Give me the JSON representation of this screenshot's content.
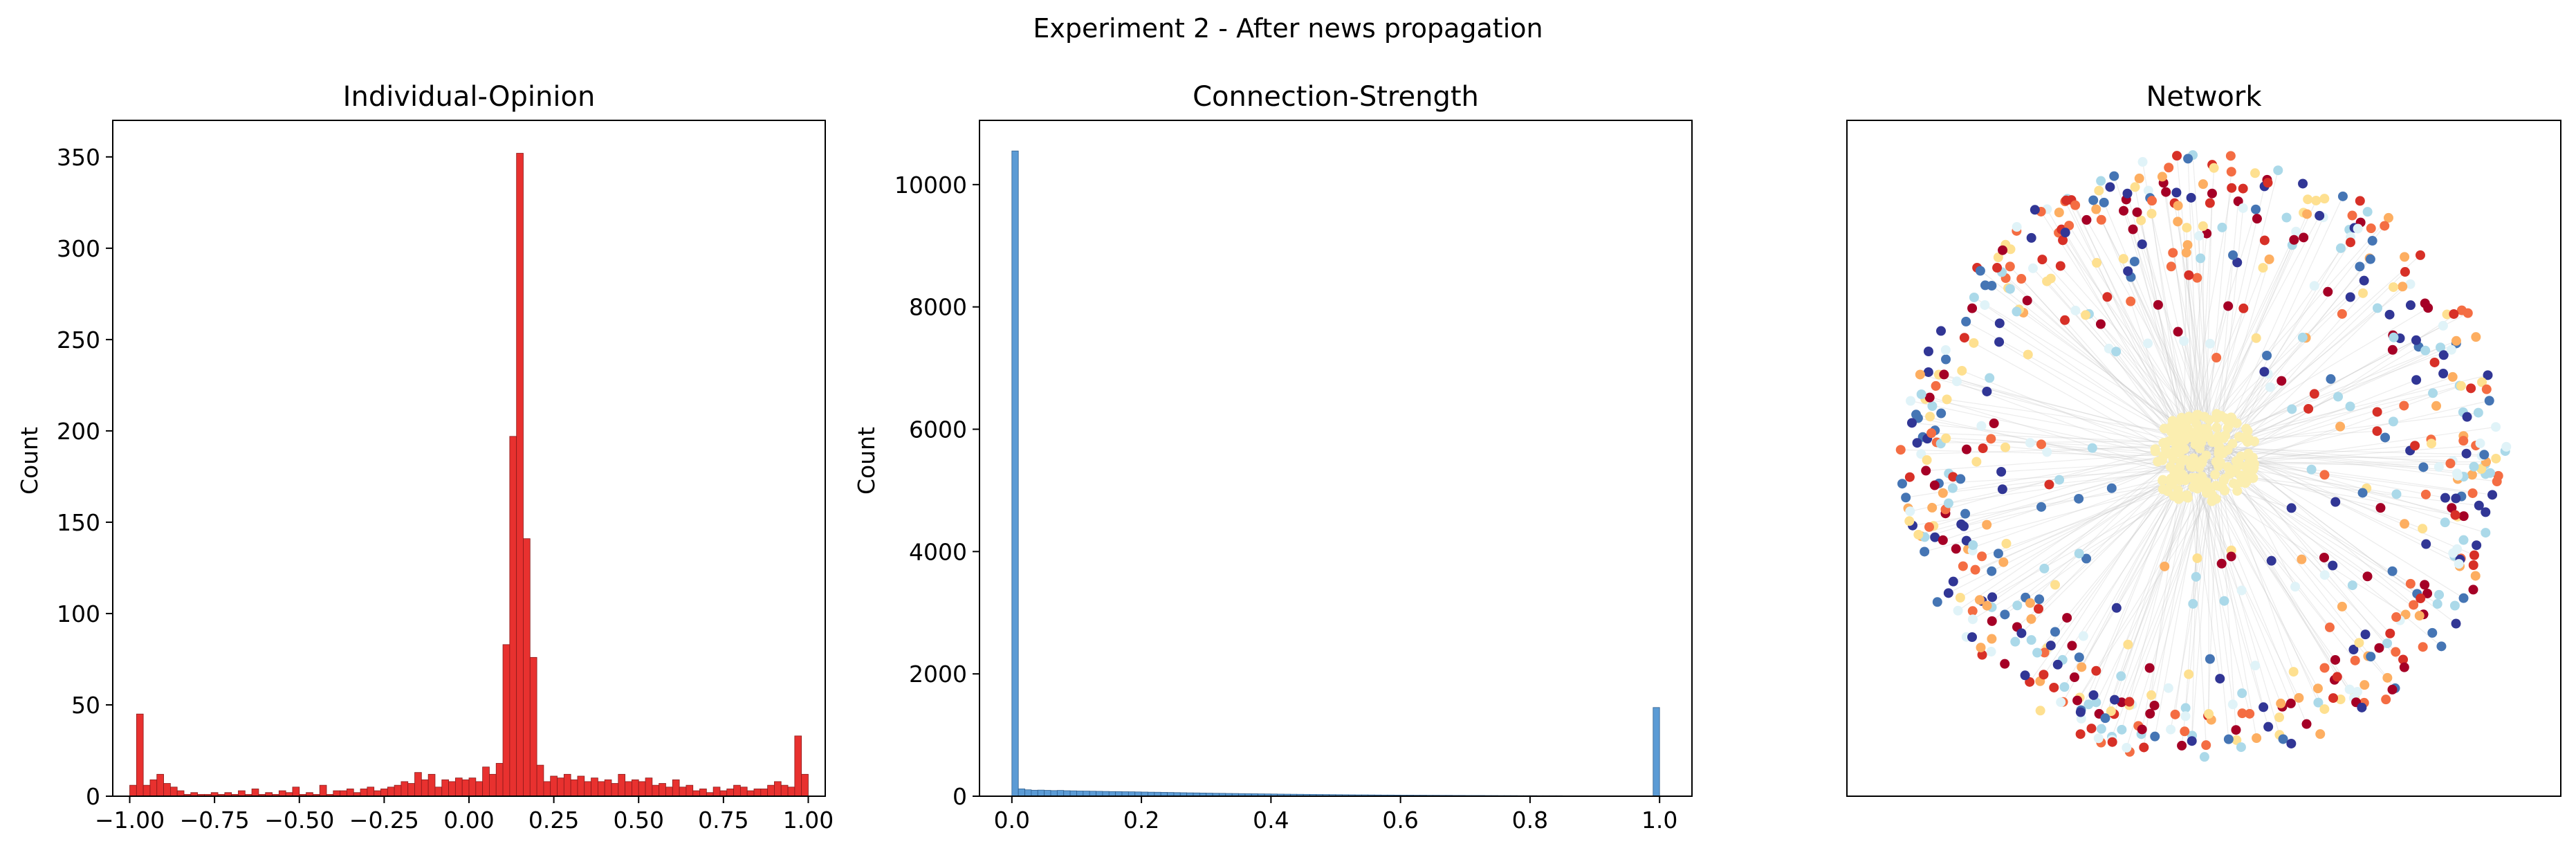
{
  "figure": {
    "suptitle": "Experiment 2 - After news propagation"
  },
  "chart_data": [
    {
      "type": "bar",
      "title": "Individual-Opinion",
      "xlabel": "",
      "ylabel": "Count",
      "xlim": [
        -1.05,
        1.05
      ],
      "ylim": [
        0,
        370
      ],
      "xticks": [
        -1.0,
        -0.75,
        -0.5,
        -0.25,
        0.0,
        0.25,
        0.5,
        0.75,
        1.0
      ],
      "xtick_labels": [
        "−1.00",
        "−0.75",
        "−0.50",
        "−0.25",
        "0.00",
        "0.25",
        "0.50",
        "0.75",
        "1.00"
      ],
      "yticks": [
        0,
        50,
        100,
        150,
        200,
        250,
        300,
        350
      ],
      "ytick_labels": [
        "0",
        "50",
        "100",
        "150",
        "200",
        "250",
        "300",
        "350"
      ],
      "bins": {
        "start": -1.0,
        "end": 1.0,
        "count": 100
      },
      "values": [
        6,
        45,
        6,
        9,
        12,
        7,
        5,
        3,
        1,
        2,
        1,
        1,
        2,
        1,
        2,
        1,
        3,
        1,
        4,
        1,
        2,
        1,
        3,
        2,
        5,
        1,
        2,
        1,
        6,
        1,
        3,
        3,
        4,
        2,
        4,
        5,
        3,
        4,
        5,
        6,
        8,
        7,
        13,
        9,
        12,
        5,
        9,
        8,
        10,
        9,
        10,
        8,
        16,
        12,
        18,
        83,
        197,
        352,
        141,
        76,
        17,
        8,
        11,
        10,
        12,
        9,
        11,
        8,
        10,
        8,
        9,
        7,
        12,
        8,
        9,
        8,
        10,
        6,
        7,
        5,
        9,
        5,
        6,
        3,
        4,
        2,
        5,
        3,
        4,
        6,
        5,
        3,
        4,
        4,
        6,
        8,
        6,
        5,
        33,
        12
      ],
      "color": "#e8312f",
      "edge_color": "#8a1a1a"
    },
    {
      "type": "bar",
      "title": "Connection-Strength",
      "xlabel": "",
      "ylabel": "Count",
      "xlim": [
        -0.05,
        1.05
      ],
      "ylim": [
        0,
        11050
      ],
      "xticks": [
        0.0,
        0.2,
        0.4,
        0.6,
        0.8,
        1.0
      ],
      "xtick_labels": [
        "0.0",
        "0.2",
        "0.4",
        "0.6",
        "0.8",
        "1.0"
      ],
      "yticks": [
        0,
        2000,
        4000,
        6000,
        8000,
        10000
      ],
      "ytick_labels": [
        "0",
        "2000",
        "4000",
        "6000",
        "8000",
        "10000"
      ],
      "bins": {
        "start": 0.0,
        "end": 1.0,
        "count": 100
      },
      "values": [
        10550,
        120,
        105,
        98,
        100,
        96,
        92,
        95,
        90,
        88,
        85,
        84,
        82,
        80,
        78,
        76,
        75,
        73,
        72,
        70,
        68,
        66,
        65,
        63,
        61,
        59,
        57,
        55,
        54,
        52,
        50,
        48,
        47,
        45,
        44,
        42,
        41,
        40,
        38,
        37,
        36,
        34,
        33,
        32,
        31,
        30,
        29,
        28,
        27,
        26,
        25,
        24,
        23,
        22,
        22,
        21,
        20,
        19,
        19,
        18,
        17,
        17,
        16,
        16,
        15,
        15,
        14,
        14,
        13,
        13,
        12,
        12,
        12,
        11,
        11,
        10,
        10,
        10,
        9,
        9,
        9,
        8,
        8,
        8,
        8,
        7,
        7,
        7,
        7,
        6,
        6,
        6,
        6,
        6,
        5,
        5,
        5,
        5,
        5,
        1450
      ],
      "color": "#5b9bd5",
      "edge_color": "#2f5f8f"
    },
    {
      "type": "scatter",
      "title": "Network",
      "xlabel": "",
      "ylabel": "",
      "axes_visible": false,
      "colors": [
        "#313695",
        "#4575b4",
        "#abd9e9",
        "#e0f3f8",
        "#fee090",
        "#fdae61",
        "#f46d43",
        "#d73027",
        "#a50026"
      ],
      "node_count": 800,
      "center_cluster_color": "#fbeeb0",
      "edge_color": "#c8c8c8"
    }
  ]
}
